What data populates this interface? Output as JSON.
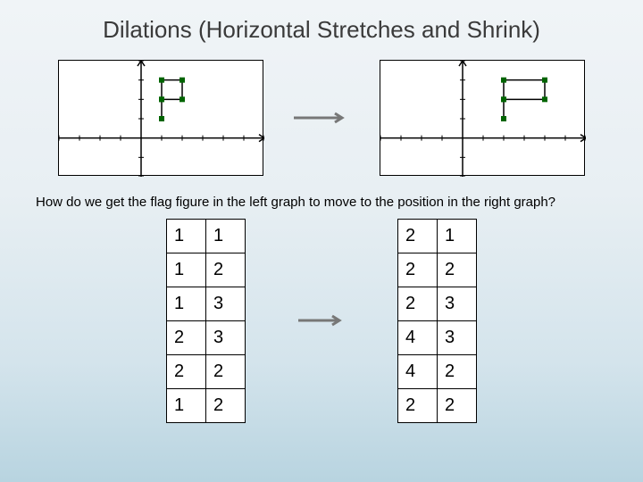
{
  "title": "Dilations (Horizontal Stretches and Shrink)",
  "question": "How do we get the flag figure in the left graph to move to the position in the right graph?",
  "graph_left": {
    "bg": "#ffffff",
    "axis_color": "#000000",
    "tick_color": "#000000",
    "flag_color": "#000000",
    "marker_color": "#006400",
    "xrange": [
      -4,
      6
    ],
    "yrange": [
      -2,
      4
    ],
    "flag_points": [
      [
        1,
        1
      ],
      [
        1,
        2
      ],
      [
        1,
        3
      ],
      [
        2,
        3
      ],
      [
        2,
        2
      ],
      [
        1,
        2
      ]
    ]
  },
  "graph_right": {
    "bg": "#ffffff",
    "axis_color": "#000000",
    "tick_color": "#000000",
    "flag_color": "#000000",
    "marker_color": "#006400",
    "xrange": [
      -4,
      6
    ],
    "yrange": [
      -2,
      4
    ],
    "flag_points": [
      [
        2,
        1
      ],
      [
        2,
        2
      ],
      [
        2,
        3
      ],
      [
        4,
        3
      ],
      [
        4,
        2
      ],
      [
        2,
        2
      ]
    ]
  },
  "arrow_color": "#777777",
  "table_left": {
    "rows": [
      [
        "1",
        "1"
      ],
      [
        "1",
        "2"
      ],
      [
        "1",
        "3"
      ],
      [
        "2",
        "3"
      ],
      [
        "2",
        "2"
      ],
      [
        "1",
        "2"
      ]
    ]
  },
  "table_right": {
    "rows": [
      [
        "2",
        "1"
      ],
      [
        "2",
        "2"
      ],
      [
        "2",
        "3"
      ],
      [
        "4",
        "3"
      ],
      [
        "4",
        "2"
      ],
      [
        "2",
        "2"
      ]
    ]
  },
  "table_style": {
    "cell_bg": "#ffffff",
    "border_color": "#000000",
    "font_size": 20
  }
}
